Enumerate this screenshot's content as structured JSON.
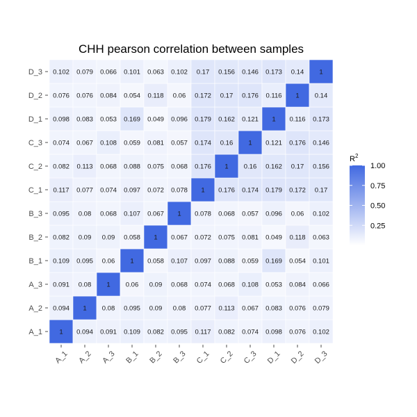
{
  "chart_data": {
    "type": "heatmap",
    "title": "CHH pearson correlation between samples",
    "x_categories": [
      "A_1",
      "A_2",
      "A_3",
      "B_1",
      "B_2",
      "B_3",
      "C_1",
      "C_2",
      "C_3",
      "D_1",
      "D_2",
      "D_3"
    ],
    "y_categories": [
      "A_1",
      "A_2",
      "A_3",
      "B_1",
      "B_2",
      "B_3",
      "C_1",
      "C_2",
      "C_3",
      "D_1",
      "D_2",
      "D_3"
    ],
    "values": [
      [
        1,
        0.094,
        0.091,
        0.109,
        0.082,
        0.095,
        0.117,
        0.082,
        0.074,
        0.098,
        0.076,
        0.102
      ],
      [
        0.094,
        1,
        0.08,
        0.095,
        0.09,
        0.08,
        0.077,
        0.113,
        0.067,
        0.083,
        0.076,
        0.079
      ],
      [
        0.091,
        0.08,
        1,
        0.06,
        0.09,
        0.068,
        0.074,
        0.068,
        0.108,
        0.053,
        0.084,
        0.066
      ],
      [
        0.109,
        0.095,
        0.06,
        1,
        0.058,
        0.107,
        0.097,
        0.088,
        0.059,
        0.169,
        0.054,
        0.101
      ],
      [
        0.082,
        0.09,
        0.09,
        0.058,
        1,
        0.067,
        0.072,
        0.075,
        0.081,
        0.049,
        0.118,
        0.063
      ],
      [
        0.095,
        0.08,
        0.068,
        0.107,
        0.067,
        1,
        0.078,
        0.068,
        0.057,
        0.096,
        0.06,
        0.102
      ],
      [
        0.117,
        0.077,
        0.074,
        0.097,
        0.072,
        0.078,
        1,
        0.176,
        0.174,
        0.179,
        0.172,
        0.17
      ],
      [
        0.082,
        0.113,
        0.068,
        0.088,
        0.075,
        0.068,
        0.176,
        1,
        0.16,
        0.162,
        0.17,
        0.156
      ],
      [
        0.074,
        0.067,
        0.108,
        0.059,
        0.081,
        0.057,
        0.174,
        0.16,
        1,
        0.121,
        0.176,
        0.146
      ],
      [
        0.098,
        0.083,
        0.053,
        0.169,
        0.049,
        0.096,
        0.179,
        0.162,
        0.121,
        1,
        0.116,
        0.173
      ],
      [
        0.076,
        0.076,
        0.084,
        0.054,
        0.118,
        0.06,
        0.172,
        0.17,
        0.176,
        0.116,
        1,
        0.14
      ],
      [
        0.102,
        0.079,
        0.066,
        0.101,
        0.063,
        0.102,
        0.17,
        0.156,
        0.146,
        0.173,
        0.14,
        1
      ]
    ],
    "legend": {
      "title": "R",
      "title_superscript": "2",
      "placement": "right",
      "ticks": [
        1.0,
        0.75,
        0.5,
        0.25
      ],
      "tick_labels": [
        "1.00",
        "0.75",
        "0.50",
        "0.25"
      ],
      "range": [
        0,
        1
      ]
    },
    "colors": {
      "low": "#ffffff",
      "high": "#4169e1"
    }
  }
}
